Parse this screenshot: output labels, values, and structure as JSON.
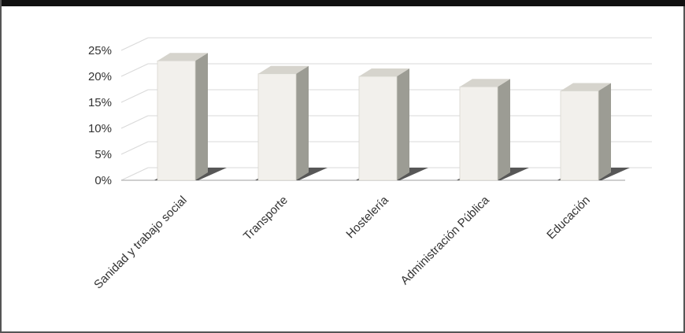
{
  "chart_data": {
    "type": "bar",
    "style": "3d-column",
    "categories": [
      "Sanidad y trabajo social",
      "Transporte",
      "Hostelería",
      "Administración Pública",
      "Educación"
    ],
    "values": [
      0.23,
      0.205,
      0.2,
      0.18,
      0.172
    ],
    "y_ticks": [
      "0%",
      "5%",
      "10%",
      "15%",
      "20%",
      "25%"
    ],
    "ylim": [
      0,
      0.25
    ],
    "grid": true,
    "legend": false,
    "colors": {
      "front": "#f2f0ec",
      "side": "#9c9c94",
      "top": "#d6d4cd",
      "shadow": "#3a3a3a",
      "grid": "#d9d9d9",
      "text": "#333333"
    }
  }
}
